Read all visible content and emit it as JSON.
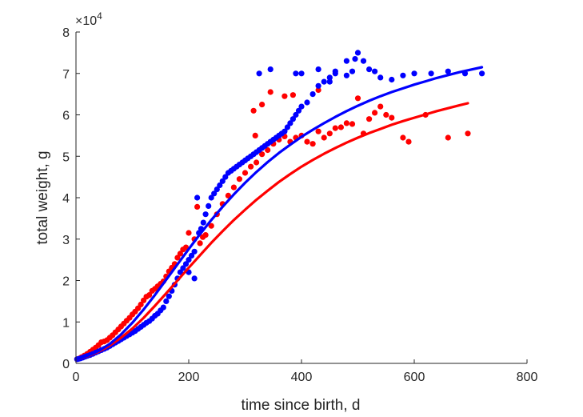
{
  "chart_data": {
    "type": "scatter",
    "xlabel": "time since birth, d",
    "ylabel": "total weight, g",
    "xlim": [
      0,
      800
    ],
    "ylim": [
      0,
      80000
    ],
    "x_ticks": [
      0,
      200,
      400,
      600,
      800
    ],
    "y_ticks": [
      0,
      10000,
      20000,
      30000,
      40000,
      50000,
      60000,
      70000,
      80000
    ],
    "x_tick_labels": [
      "0",
      "200",
      "400",
      "600",
      "800"
    ],
    "y_tick_labels": [
      "0",
      "1",
      "2",
      "3",
      "4",
      "5",
      "6",
      "7",
      "8"
    ],
    "y_exponent_label": "×10",
    "y_exponent_power": "4",
    "grid": false,
    "legend": "none",
    "colors": {
      "red": "#ff0000",
      "blue": "#0000ff",
      "axis": "#262626"
    },
    "series": [
      {
        "kind": "points",
        "color": "#ff0000",
        "x": [
          2,
          6,
          10,
          15,
          20,
          25,
          30,
          35,
          40,
          45,
          50,
          55,
          60,
          65,
          70,
          75,
          80,
          85,
          90,
          95,
          100,
          105,
          110,
          115,
          120,
          125,
          130,
          135,
          140,
          145,
          150,
          155,
          160,
          165,
          170,
          175,
          180,
          185,
          190,
          195,
          200,
          210,
          215,
          220,
          225,
          230,
          240,
          250,
          260,
          270,
          280,
          290,
          300,
          310,
          320,
          330,
          340,
          350,
          360,
          370,
          380,
          390,
          400,
          410,
          420,
          430,
          440,
          450,
          460,
          470,
          480,
          490,
          500,
          510,
          520,
          530,
          540,
          550,
          560,
          580,
          590,
          620,
          660,
          695,
          315,
          318,
          330,
          345,
          370,
          385,
          430
        ],
        "y": [
          1000,
          1200,
          1500,
          1900,
          2300,
          2800,
          3300,
          3800,
          4400,
          5100,
          5300,
          5600,
          6200,
          6800,
          7500,
          8200,
          8900,
          9600,
          10300,
          11000,
          11800,
          12500,
          13300,
          14200,
          15200,
          16100,
          16500,
          17500,
          18000,
          18600,
          19200,
          19800,
          21000,
          22200,
          23100,
          24000,
          25500,
          26500,
          27500,
          28000,
          31500,
          30000,
          37800,
          29000,
          30500,
          31000,
          33200,
          36000,
          38500,
          40500,
          42500,
          44500,
          46000,
          47500,
          48500,
          50500,
          51500,
          53000,
          54000,
          54800,
          53500,
          54500,
          55000,
          53500,
          53000,
          56000,
          54500,
          55500,
          56800,
          57000,
          58000,
          57800,
          64000,
          55500,
          59000,
          60500,
          62000,
          60000,
          59300,
          54500,
          53500,
          60000,
          54500,
          55500,
          61000,
          55000,
          62500,
          65500,
          64500,
          64800,
          66000
        ]
      },
      {
        "kind": "points",
        "color": "#0000ff",
        "x": [
          2,
          5,
          8,
          12,
          16,
          20,
          25,
          30,
          35,
          40,
          45,
          50,
          55,
          60,
          65,
          70,
          75,
          80,
          85,
          90,
          95,
          100,
          105,
          110,
          115,
          120,
          125,
          130,
          135,
          140,
          145,
          150,
          155,
          160,
          165,
          170,
          175,
          180,
          185,
          190,
          195,
          200,
          205,
          210,
          215,
          218,
          222,
          226,
          230,
          235,
          240,
          245,
          250,
          255,
          260,
          265,
          270,
          275,
          280,
          285,
          290,
          295,
          300,
          305,
          310,
          315,
          320,
          325,
          330,
          335,
          340,
          345,
          350,
          355,
          360,
          365,
          370,
          375,
          380,
          385,
          390,
          395,
          400,
          410,
          420,
          430,
          440,
          450,
          460,
          480,
          490,
          500,
          510,
          520,
          530,
          540,
          560,
          580,
          600,
          630,
          660,
          690,
          720,
          325,
          345,
          390,
          400,
          430,
          450,
          460,
          480,
          495,
          200,
          210
        ],
        "y": [
          1000,
          1100,
          1200,
          1400,
          1600,
          1800,
          2000,
          2300,
          2600,
          2900,
          3200,
          3500,
          3800,
          4200,
          4600,
          5000,
          5400,
          5800,
          6200,
          6600,
          7000,
          7400,
          7800,
          8300,
          8800,
          9300,
          9800,
          10200,
          10800,
          11500,
          12000,
          12800,
          13500,
          15000,
          16200,
          17500,
          19000,
          20500,
          22000,
          23000,
          24000,
          25000,
          26000,
          27000,
          40000,
          31500,
          32500,
          34000,
          36000,
          38000,
          40000,
          41000,
          42000,
          43000,
          44000,
          45000,
          46000,
          46500,
          47000,
          47500,
          48000,
          48500,
          49000,
          49500,
          50000,
          50500,
          51000,
          51500,
          52000,
          52500,
          53000,
          53500,
          54000,
          54500,
          55000,
          55500,
          56000,
          57000,
          58000,
          59000,
          60000,
          61000,
          62000,
          63000,
          65000,
          67000,
          68000,
          69000,
          70000,
          69500,
          70500,
          75000,
          73000,
          71000,
          70500,
          69000,
          68500,
          69500,
          70000,
          70000,
          70500,
          70000,
          70000,
          70000,
          71000,
          70000,
          70000,
          71000,
          68000,
          70500,
          73000,
          73500,
          22000,
          20500
        ]
      },
      {
        "kind": "curve",
        "color": "#ff0000",
        "x": [
          0,
          20,
          40,
          60,
          80,
          100,
          120,
          140,
          160,
          180,
          200,
          220,
          240,
          260,
          280,
          300,
          320,
          340,
          360,
          380,
          400,
          420,
          440,
          460,
          480,
          500,
          520,
          540,
          560,
          580,
          600,
          620,
          640,
          660,
          680,
          695
        ],
        "y": [
          1000,
          1700,
          2800,
          4300,
          6200,
          8400,
          11000,
          13900,
          16900,
          20000,
          23100,
          26100,
          29100,
          31900,
          34600,
          37100,
          39500,
          41700,
          43800,
          45700,
          47500,
          49100,
          50600,
          52000,
          53300,
          54500,
          55600,
          56600,
          57600,
          58500,
          59300,
          60100,
          60900,
          61600,
          62300,
          62800
        ]
      },
      {
        "kind": "curve",
        "color": "#0000ff",
        "x": [
          0,
          20,
          40,
          60,
          80,
          100,
          120,
          140,
          160,
          180,
          200,
          220,
          240,
          260,
          280,
          300,
          320,
          340,
          360,
          380,
          400,
          420,
          440,
          460,
          480,
          500,
          520,
          540,
          560,
          580,
          600,
          620,
          640,
          660,
          680,
          700,
          720
        ],
        "y": [
          1000,
          1800,
          3000,
          4700,
          7000,
          9800,
          13000,
          16500,
          20200,
          23900,
          27600,
          31200,
          34600,
          37800,
          40800,
          43600,
          46200,
          48600,
          50800,
          52800,
          54700,
          56400,
          58000,
          59500,
          60900,
          62200,
          63400,
          64500,
          65500,
          66400,
          67300,
          68100,
          68900,
          69600,
          70300,
          70900,
          71500
        ]
      }
    ]
  }
}
